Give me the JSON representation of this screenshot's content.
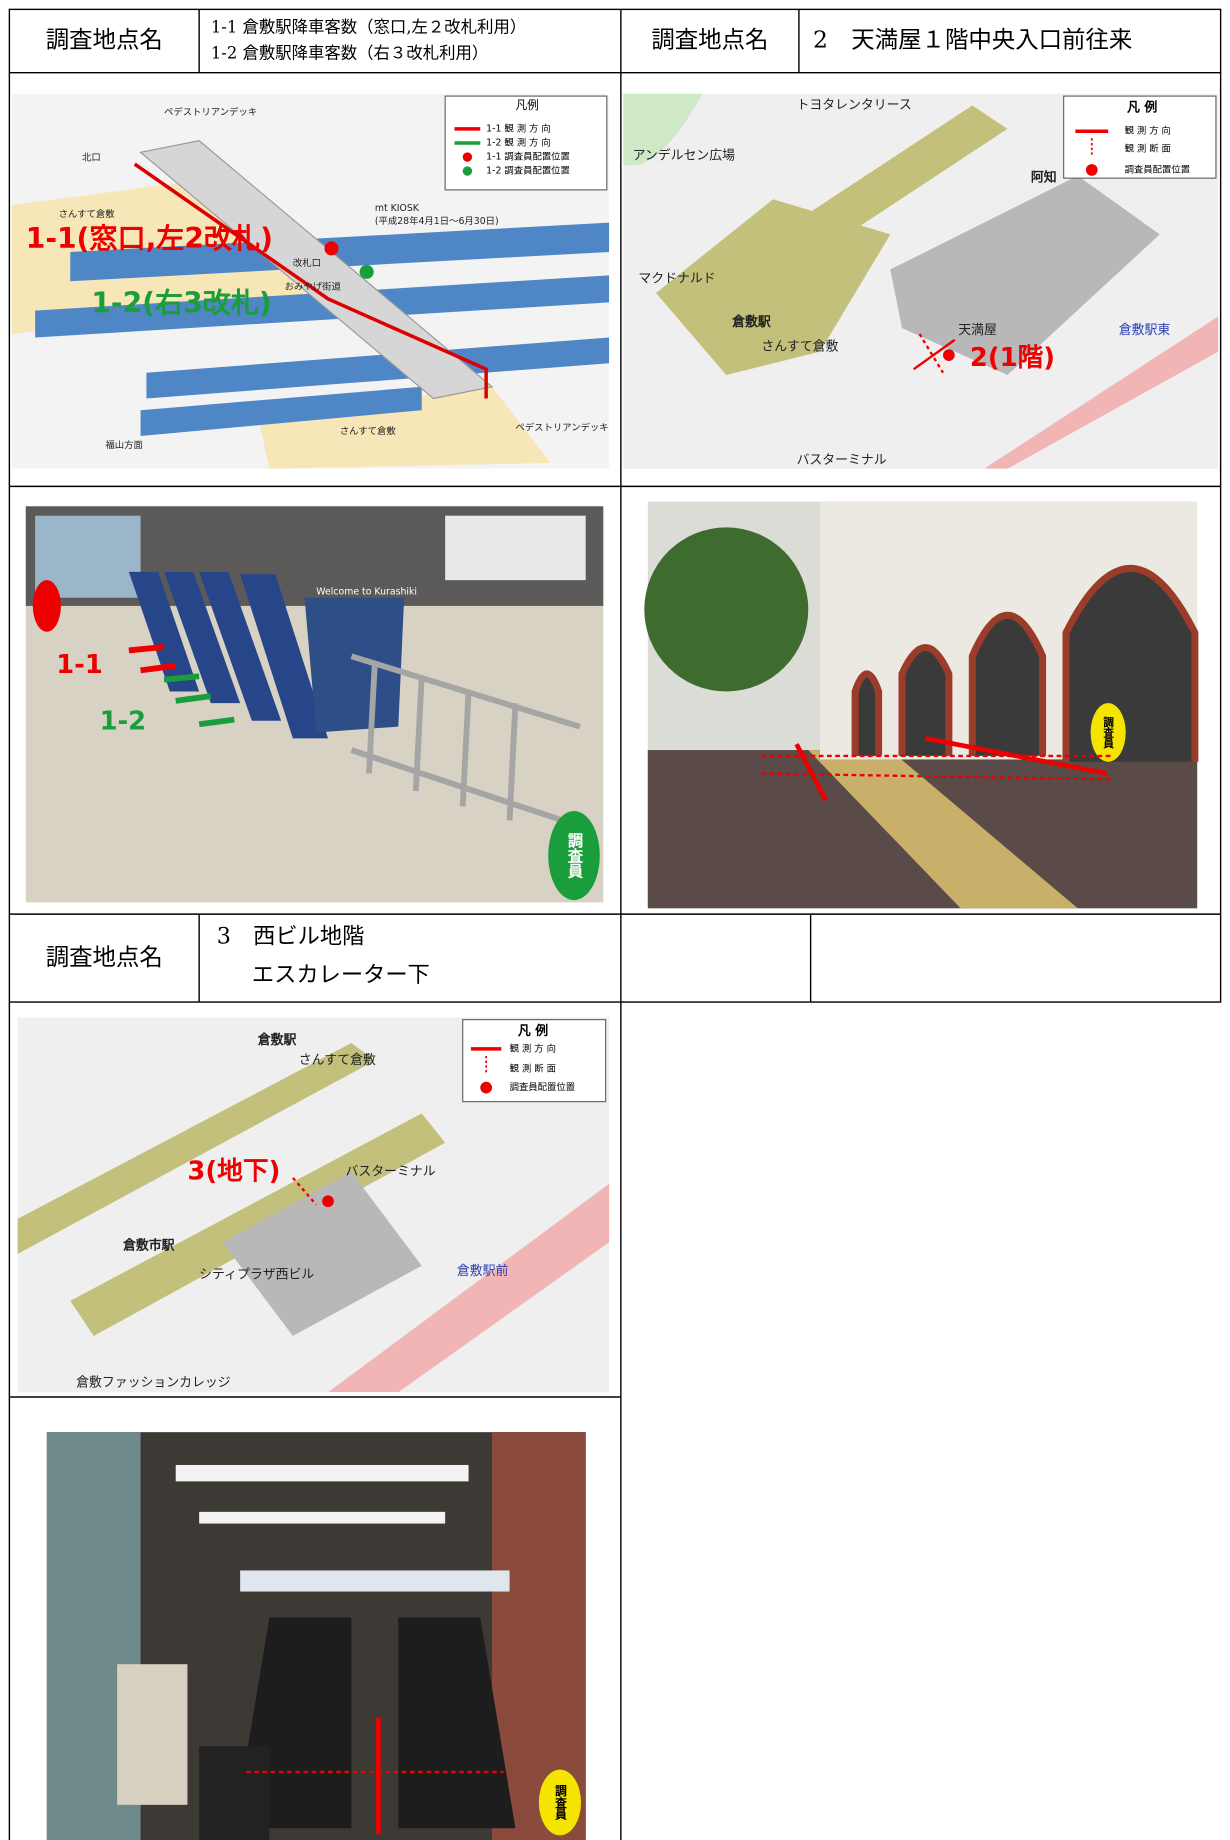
{
  "site1": {
    "label": "調査地点名",
    "lines": [
      "1-1 倉敷駅降車客数（窓口,左２改札利用）",
      "1-2 倉敷駅降車客数（右３改札利用）"
    ]
  },
  "site2": {
    "label": "調査地点名",
    "name": "2　天満屋１階中央入口前往来"
  },
  "site3": {
    "label": "調査地点名",
    "lines": [
      "3　西ビル地階",
      "エスカレーター下"
    ]
  },
  "map1": {
    "legend_title": "凡例",
    "legend": [
      "1-1 観 測 方 向",
      "1-2 観 測 方 向",
      "1-1 調査員配置位置",
      "1-2 調査員配置位置"
    ],
    "labels": [
      "ペデストリアンデッキ",
      "北口",
      "さんすて倉敷",
      "mt KIOSK",
      "(平成28年4月1日～6月30日)",
      "改札口",
      "おみやげ街道",
      "さんすて倉敷",
      "福山方面",
      "ペデストリアンデッキ"
    ],
    "point_1_1": "1-1(窓口,左2改札)",
    "point_1_2": "1-2(右3改札)"
  },
  "map2": {
    "legend_title": "凡 例",
    "legend": [
      "観 測 方 向",
      "観 測 断 面",
      "調査員配置位置"
    ],
    "labels": [
      "トヨタレンタリース",
      "アンデルセン広場",
      "マクドナルド",
      "倉敷駅",
      "さんすて倉敷",
      "天満屋",
      "阿知",
      "倉敷駅東",
      "バスターミナル"
    ],
    "point": "2(1階)"
  },
  "photo1": {
    "labels": [
      "1-1",
      "1-2",
      "調査員",
      "Welcome to Kurashiki"
    ]
  },
  "photo2": {
    "labels": [
      "調査員"
    ]
  },
  "map3": {
    "legend_title": "凡 例",
    "legend": [
      "観 測 方 向",
      "観 測 断 面",
      "調査員配置位置"
    ],
    "labels": [
      "倉敷駅",
      "さんすて倉敷",
      "倉敷市駅",
      "シティプラザ西ビル",
      "倉敷駅前",
      "バスターミナル",
      "倉敷ファッションカレッジ"
    ],
    "point": "3(地下)"
  },
  "photo3": {
    "labels": [
      "調査員"
    ]
  }
}
